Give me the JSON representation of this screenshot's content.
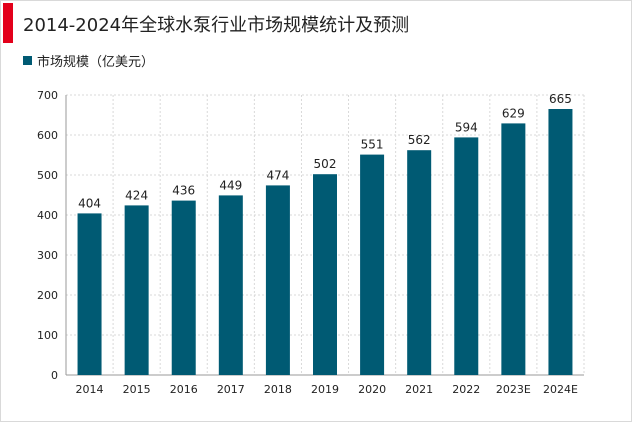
{
  "header": {
    "title": "2014-2024年全球水泵行业市场规模统计及预测"
  },
  "colors": {
    "accent": "#e3001b",
    "bar": "#005a73",
    "grid": "#d9d9d9"
  },
  "chart_data": {
    "type": "bar",
    "title": "2014-2024年全球水泵行业市场规模统计及预测",
    "categories": [
      "2014",
      "2015",
      "2016",
      "2017",
      "2018",
      "2019",
      "2020",
      "2021",
      "2022",
      "2023E",
      "2024E"
    ],
    "series": [
      {
        "name": "市场规模（亿美元）",
        "values": [
          404,
          424,
          436,
          449,
          474,
          502,
          551,
          562,
          594,
          629,
          665
        ]
      }
    ],
    "data_labels": [
      "404",
      "424",
      "436",
      "449",
      "474",
      "502",
      "551",
      "562",
      "594",
      "629",
      "665"
    ],
    "ylim": [
      0,
      700
    ],
    "yticks": [
      "0",
      "100",
      "200",
      "300",
      "400",
      "500",
      "600",
      "700"
    ],
    "grid": true,
    "legend_position": "top-left"
  }
}
